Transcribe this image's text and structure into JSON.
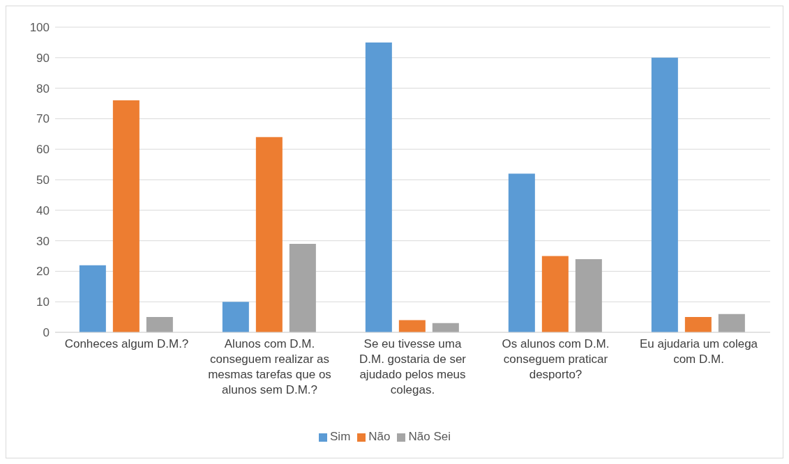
{
  "chart_data": {
    "type": "bar",
    "categories": [
      "Conheces algum D.M.?",
      "Alunos com D.M. conseguem realizar as mesmas tarefas que os alunos sem D.M.?",
      "Se eu tivesse uma D.M. gostaria de ser ajudado pelos meus colegas.",
      "Os alunos com D.M. conseguem praticar desporto?",
      "Eu ajudaria um colega com D.M."
    ],
    "series": [
      {
        "name": "Sim",
        "color": "#5b9bd5",
        "values": [
          22,
          10,
          95,
          52,
          90
        ]
      },
      {
        "name": "Não",
        "color": "#ed7d31",
        "values": [
          76,
          64,
          4,
          25,
          5
        ]
      },
      {
        "name": "Não Sei",
        "color": "#a5a5a5",
        "values": [
          5,
          29,
          3,
          24,
          6
        ]
      }
    ],
    "ylim": [
      0,
      100
    ],
    "yticks": [
      0,
      10,
      20,
      30,
      40,
      50,
      60,
      70,
      80,
      90,
      100
    ],
    "grid": "y",
    "legend": "bottom"
  }
}
